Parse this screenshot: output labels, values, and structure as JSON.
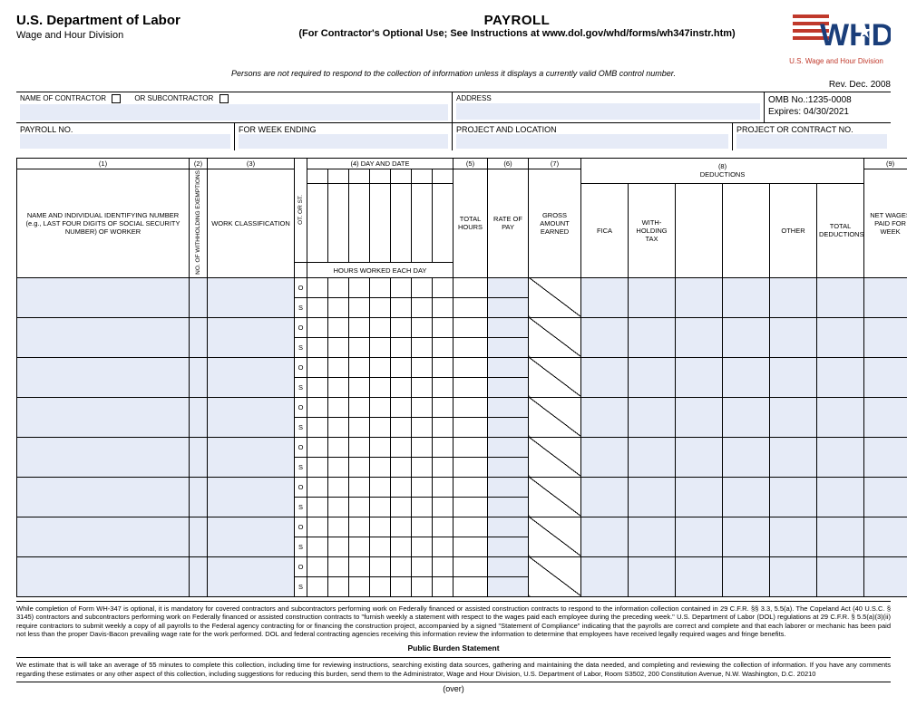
{
  "header": {
    "department": "U.S. Department of Labor",
    "division": "Wage and Hour Division",
    "title": "PAYROLL",
    "subtitle": "(For Contractor's Optional Use; See Instructions at www.dol.gov/whd/forms/wh347instr.htm)",
    "notice": "Persons are not required to respond to the collection of information unless it displays a currently valid OMB control number.",
    "logo_caption": "U.S. Wage and Hour Division",
    "revision": "Rev. Dec. 2008"
  },
  "meta": {
    "contractor_label": "NAME OF CONTRACTOR",
    "or_sub_label": "OR SUBCONTRACTOR",
    "address_label": "ADDRESS",
    "omb_no": "OMB No.:1235-0008",
    "expires": "Expires: 04/30/2021",
    "payroll_no_label": "PAYROLL NO.",
    "week_ending_label": "FOR WEEK ENDING",
    "project_loc_label": "PROJECT AND LOCATION",
    "contract_no_label": "PROJECT OR CONTRACT NO."
  },
  "columns": {
    "c1": "(1)",
    "c2": "(2)",
    "c3": "(3)",
    "c4": "(4) DAY AND DATE",
    "c5": "(5)",
    "c6": "(6)",
    "c7": "(7)",
    "c8": "(8)\nDEDUCTIONS",
    "c9": "(9)",
    "name_label": "NAME AND INDIVIDUAL IDENTIFYING NUMBER (e.g., LAST FOUR DIGITS OF SOCIAL SECURITY NUMBER) OF WORKER",
    "exemptions": "NO. OF WITHHOLDING EXEMPTIONS",
    "work_class": "WORK CLASSIFICATION",
    "ot_st": "OT. OR ST.",
    "hours_each_day": "HOURS WORKED EACH DAY",
    "total_hours": "TOTAL HOURS",
    "rate_of_pay": "RATE OF PAY",
    "gross": "GROSS AMOUNT EARNED",
    "fica": "FICA",
    "withholding": "WITH-HOLDING TAX",
    "ded_blank1": "",
    "ded_blank2": "",
    "other": "OTHER",
    "total_ded": "TOTAL DEDUCTIONS",
    "net_wages": "NET WAGES PAID FOR WEEK",
    "o_label": "O",
    "s_label": "S"
  },
  "footer": {
    "legal1": "While completion of Form WH-347 is optional, it is mandatory for covered contractors and subcontractors performing work on Federally financed or assisted construction contracts to respond to the information collection contained in 29 C.F.R. §§ 3.3, 5.5(a). The Copeland Act (40 U.S.C. § 3145) contractors and subcontractors performing work on Federally financed or assisted construction contracts to \"furnish weekly a statement with respect to the wages paid each employee during the  preceding week.\"  U.S. Department of Labor (DOL) regulations at 29 C.F.R. § 5.5(a)(3)(ii) require contractors to submit weekly a copy of all payrolls to the Federal agency contracting for or financing the construction project, accompanied by a signed \"Statement of Compliance\" indicating that the payrolls are correct and complete and that each laborer or mechanic has been paid not less than the proper Davis-Bacon prevailing wage rate for the work performed. DOL and federal contracting agencies receiving this information review the information to determine that employees have received legally required wages and fringe benefits.",
    "burden_title": "Public Burden Statement",
    "legal2": "We estimate that is will take an average of 55 minutes to complete this collection, including time for reviewing instructions, searching existing data sources, gathering and maintaining the data needed, and completing and reviewing the collection of information. If you have any comments regarding these estimates or any other aspect of this collection, including suggestions for reducing this burden, send them to the Administrator, Wage and Hour Division, U.S. Department of Labor, Room S3502, 200 Constitution Avenue, N.W. Washington, D.C. 20210",
    "over": "(over)"
  },
  "style": {
    "shade_color": "#e6ebf7",
    "border_color": "#000000",
    "bg_color": "#ffffff",
    "num_worker_rows": 8,
    "days_per_week": 7,
    "logo_red": "#c0392b",
    "logo_blue": "#1a3e7a"
  }
}
